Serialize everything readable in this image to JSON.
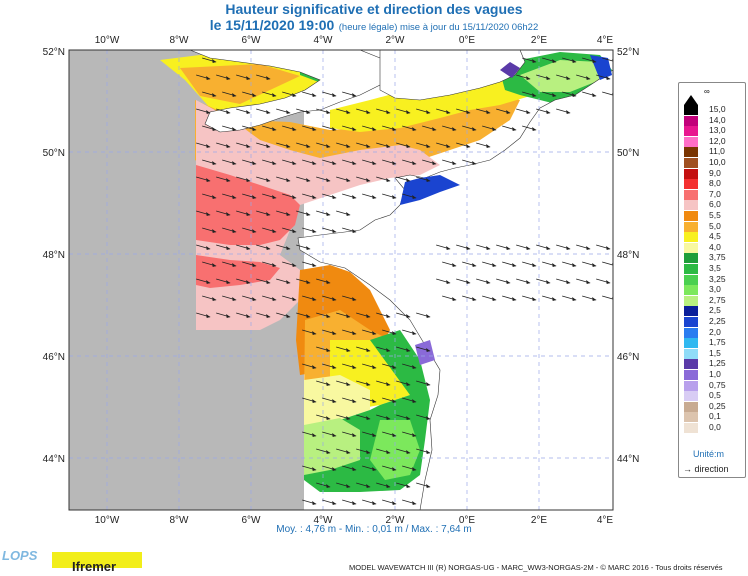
{
  "header": {
    "title": "Hauteur significative et direction des vagues",
    "date": "le 15/11/2020 19:00",
    "update_note": "(heure légale) mise à jour du 15/11/2020 06h22"
  },
  "axes": {
    "lon_labels": [
      "10°W",
      "8°W",
      "6°W",
      "4°W",
      "2°W",
      "0°E",
      "2°E",
      "4°E"
    ],
    "lat_labels": [
      "52°N",
      "50°N",
      "48°N",
      "46°N",
      "44°N"
    ]
  },
  "stats": {
    "text": "Moy. : 4,76 m  -  Min. : 0,01 m / Max. : 7,64 m"
  },
  "legend": {
    "max_symbol": "∞",
    "levels": [
      {
        "label": "15,0",
        "color": "#000000"
      },
      {
        "label": "14,0",
        "color": "#c2007a"
      },
      {
        "label": "13,0",
        "color": "#e8168f"
      },
      {
        "label": "12,0",
        "color": "#ff6ec7"
      },
      {
        "label": "11,0",
        "color": "#7a3400"
      },
      {
        "label": "10,0",
        "color": "#a05020"
      },
      {
        "label": "9,0",
        "color": "#c41010"
      },
      {
        "label": "8,0",
        "color": "#f43030"
      },
      {
        "label": "7,0",
        "color": "#f87070"
      },
      {
        "label": "6,0",
        "color": "#f6c4c4"
      },
      {
        "label": "5,5",
        "color": "#f08a10"
      },
      {
        "label": "5,0",
        "color": "#f8b030"
      },
      {
        "label": "4,5",
        "color": "#f8f020"
      },
      {
        "label": "4,0",
        "color": "#f8f8a0"
      },
      {
        "label": "3,75",
        "color": "#1e9e3a"
      },
      {
        "label": "3,5",
        "color": "#2cba44"
      },
      {
        "label": "3,25",
        "color": "#4ad050"
      },
      {
        "label": "3,0",
        "color": "#7ce85c"
      },
      {
        "label": "2,75",
        "color": "#b8f080"
      },
      {
        "label": "2,5",
        "color": "#0a1e9a"
      },
      {
        "label": "2,25",
        "color": "#1a44d0"
      },
      {
        "label": "2,0",
        "color": "#2a7cf0"
      },
      {
        "label": "1,75",
        "color": "#30b8f0"
      },
      {
        "label": "1,5",
        "color": "#90dcf8"
      },
      {
        "label": "1,25",
        "color": "#5a3aa8"
      },
      {
        "label": "1,0",
        "color": "#8a6ad8"
      },
      {
        "label": "0,75",
        "color": "#b8a0ec"
      },
      {
        "label": "0,5",
        "color": "#d8ccf4"
      },
      {
        "label": "0,25",
        "color": "#c8ab92"
      },
      {
        "label": "0,1",
        "color": "#dcc4ae"
      },
      {
        "label": "0,0",
        "color": "#efe2d4"
      }
    ],
    "unit_label": "Unité:m",
    "direction_label": "direction"
  },
  "footer": {
    "lops": "LOPS",
    "ifremer": "Ifremer",
    "credit": "MODEL WAVEWATCH III (R) NORGAS-UG - MARC_WW3-NORGAS-2M - © MARC 2016 - Tous droits réservés"
  },
  "colors": {
    "land": "#b8b8b8",
    "grid": "#9aa8e8",
    "title": "#1f6fb4"
  }
}
